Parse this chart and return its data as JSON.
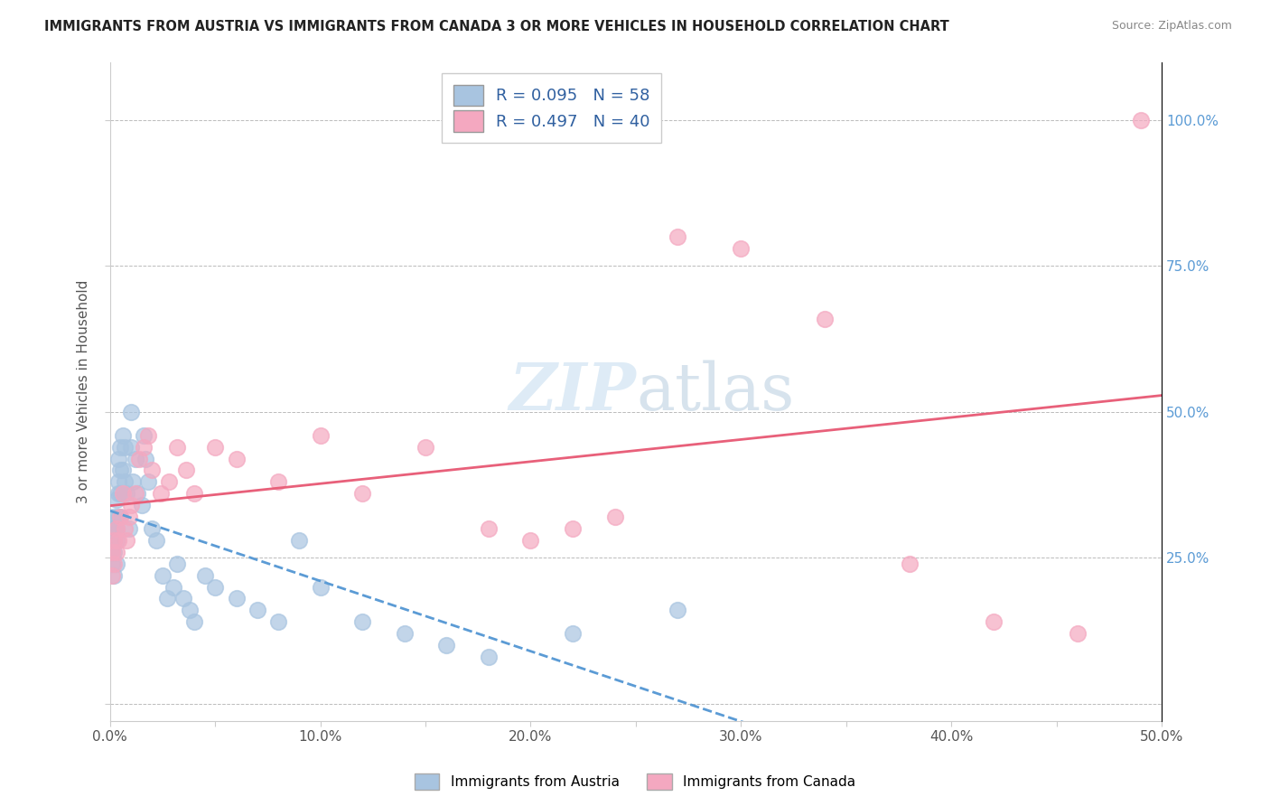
{
  "title": "IMMIGRANTS FROM AUSTRIA VS IMMIGRANTS FROM CANADA 3 OR MORE VEHICLES IN HOUSEHOLD CORRELATION CHART",
  "source": "Source: ZipAtlas.com",
  "ylabel": "3 or more Vehicles in Household",
  "xlim": [
    0.0,
    0.5
  ],
  "ylim": [
    -0.03,
    1.1
  ],
  "austria_color": "#a8c4e0",
  "canada_color": "#f4a8c0",
  "trendline_austria_color": "#5b9bd5",
  "trendline_canada_color": "#e8607a",
  "background_color": "#ffffff",
  "austria_R": 0.095,
  "austria_N": 58,
  "canada_R": 0.497,
  "canada_N": 40,
  "austria_x": [
    0.001,
    0.001,
    0.001,
    0.001,
    0.002,
    0.002,
    0.002,
    0.002,
    0.002,
    0.003,
    0.003,
    0.003,
    0.003,
    0.004,
    0.004,
    0.004,
    0.004,
    0.005,
    0.005,
    0.005,
    0.005,
    0.006,
    0.006,
    0.007,
    0.007,
    0.008,
    0.009,
    0.01,
    0.01,
    0.011,
    0.012,
    0.013,
    0.015,
    0.016,
    0.017,
    0.018,
    0.02,
    0.022,
    0.025,
    0.027,
    0.03,
    0.032,
    0.035,
    0.038,
    0.04,
    0.045,
    0.05,
    0.06,
    0.07,
    0.08,
    0.09,
    0.1,
    0.12,
    0.14,
    0.16,
    0.18,
    0.22,
    0.27
  ],
  "austria_y": [
    0.28,
    0.3,
    0.26,
    0.24,
    0.32,
    0.3,
    0.28,
    0.26,
    0.22,
    0.35,
    0.3,
    0.28,
    0.24,
    0.42,
    0.38,
    0.36,
    0.32,
    0.44,
    0.4,
    0.36,
    0.32,
    0.46,
    0.4,
    0.44,
    0.38,
    0.36,
    0.3,
    0.5,
    0.44,
    0.38,
    0.42,
    0.36,
    0.34,
    0.46,
    0.42,
    0.38,
    0.3,
    0.28,
    0.22,
    0.18,
    0.2,
    0.24,
    0.18,
    0.16,
    0.14,
    0.22,
    0.2,
    0.18,
    0.16,
    0.14,
    0.28,
    0.2,
    0.14,
    0.12,
    0.1,
    0.08,
    0.12,
    0.16
  ],
  "canada_x": [
    0.001,
    0.001,
    0.002,
    0.002,
    0.003,
    0.003,
    0.004,
    0.005,
    0.006,
    0.007,
    0.008,
    0.009,
    0.01,
    0.012,
    0.014,
    0.016,
    0.018,
    0.02,
    0.024,
    0.028,
    0.032,
    0.036,
    0.04,
    0.05,
    0.06,
    0.08,
    0.1,
    0.12,
    0.15,
    0.18,
    0.2,
    0.22,
    0.24,
    0.27,
    0.3,
    0.34,
    0.38,
    0.42,
    0.46,
    0.49
  ],
  "canada_y": [
    0.26,
    0.22,
    0.28,
    0.24,
    0.3,
    0.26,
    0.28,
    0.32,
    0.36,
    0.3,
    0.28,
    0.32,
    0.34,
    0.36,
    0.42,
    0.44,
    0.46,
    0.4,
    0.36,
    0.38,
    0.44,
    0.4,
    0.36,
    0.44,
    0.42,
    0.38,
    0.46,
    0.36,
    0.44,
    0.3,
    0.28,
    0.3,
    0.32,
    0.8,
    0.78,
    0.66,
    0.24,
    0.14,
    0.12,
    1.0
  ],
  "watermark_zip": "ZIP",
  "watermark_atlas": "atlas"
}
